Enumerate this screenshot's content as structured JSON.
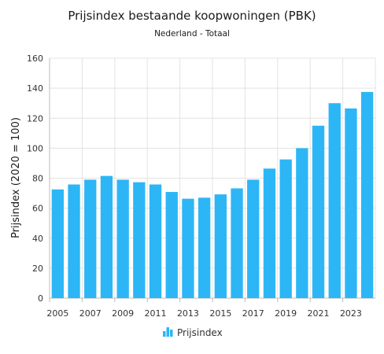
{
  "colors": {
    "bar": "#2CB6F6",
    "legend_icon": "#2CB6F6"
  },
  "legend": {
    "icon": "bar-chart-icon"
  },
  "chart_data": {
    "type": "bar",
    "title": "Prijsindex bestaande koopwoningen (PBK)",
    "subtitle": "Nederland - Totaal",
    "xlabel": "",
    "ylabel": "Prijsindex (2020 = 100)",
    "ylim": [
      0,
      160
    ],
    "yticks": [
      0,
      20,
      40,
      60,
      80,
      100,
      120,
      140,
      160
    ],
    "grid": true,
    "legend_position": "bottom-center",
    "categories": [
      "2005",
      "2006",
      "2007",
      "2008",
      "2009",
      "2010",
      "2011",
      "2012",
      "2013",
      "2014",
      "2015",
      "2016",
      "2017",
      "2018",
      "2019",
      "2020",
      "2021",
      "2022",
      "2023",
      "2024"
    ],
    "xtick_labels": [
      "2005",
      "2007",
      "2009",
      "2011",
      "2013",
      "2015",
      "2017",
      "2019",
      "2021",
      "2023"
    ],
    "series": [
      {
        "name": "Prijsindex",
        "values": [
          72.5,
          75.8,
          79.0,
          81.5,
          79.0,
          77.3,
          75.8,
          70.8,
          66.3,
          67.0,
          69.2,
          73.2,
          79.0,
          86.4,
          92.5,
          100.0,
          115.0,
          130.0,
          126.5,
          137.5
        ]
      }
    ]
  }
}
